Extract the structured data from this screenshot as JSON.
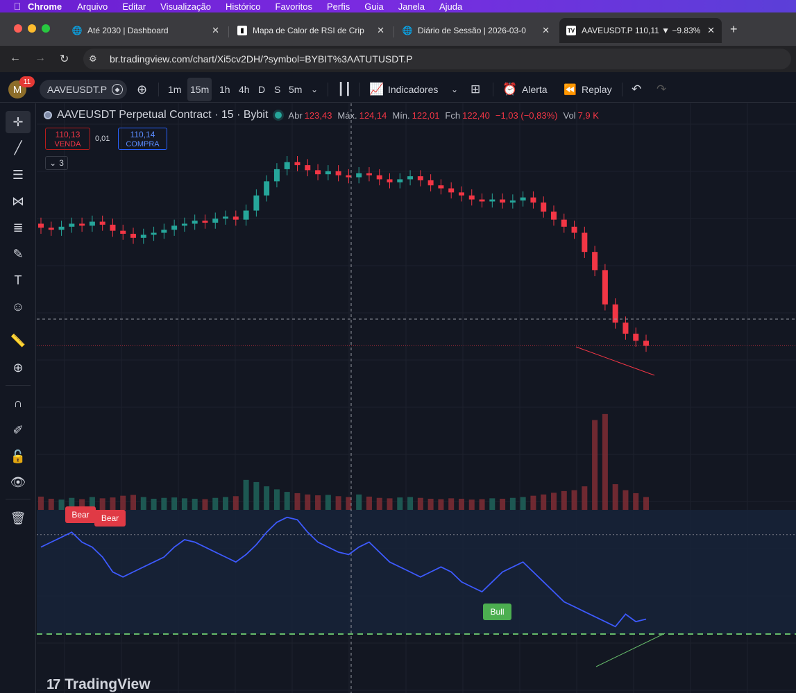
{
  "menubar": {
    "app": "Chrome",
    "items": [
      "Arquivo",
      "Editar",
      "Visualização",
      "Histórico",
      "Favoritos",
      "Perfis",
      "Guia",
      "Janela",
      "Ajuda"
    ]
  },
  "tabs": [
    {
      "title": "Até 2030 | Dashboard",
      "icon": "globe-icon"
    },
    {
      "title": "Mapa de Calor de RSI de Crip",
      "icon": "document-icon"
    },
    {
      "title": "Diário de Sessão | 2026-03-0",
      "icon": "globe-icon"
    },
    {
      "title": "AAVEUSDT.P 110,11 ▼ −9.83%",
      "icon": "tradingview-icon",
      "active": true
    }
  ],
  "address": {
    "url": "br.tradingview.com/chart/Xi5cv2DH/?symbol=BYBIT%3AATUTUSDT.P"
  },
  "toolbar": {
    "avatar_letter": "M",
    "notifications": "11",
    "symbol": "AAVEUSDT.P",
    "intervals": [
      "1m",
      "15m",
      "1h",
      "4h",
      "D",
      "S",
      "5m"
    ],
    "selected_interval": "15m",
    "indicators_label": "Indicadores",
    "alert_label": "Alerta",
    "replay_label": "Replay"
  },
  "legend": {
    "title": "AAVEUSDT Perpetual Contract · 15 · Bybit",
    "open_label": "Abr",
    "open": "123,43",
    "high_label": "Máx.",
    "high": "124,14",
    "low_label": "Mín.",
    "low": "122,01",
    "close_label": "Fch",
    "close": "122,40",
    "change": "−1,03 (−0,83%)",
    "vol_label": "Vol",
    "vol": "7,9 K"
  },
  "trade": {
    "sell_price": "110,13",
    "sell_label": "VENDA",
    "spread": "0,01",
    "buy_price": "110,14",
    "buy_label": "COMPRA"
  },
  "collapsed_count": "3",
  "signals": {
    "bear1": "Bear",
    "bear2": "Bear",
    "bull": "Bull"
  },
  "brand": "TradingView",
  "colors": {
    "up": "#26a69a",
    "down": "#f23645",
    "rsi": "#3d5afe",
    "bull": "#4caf50",
    "bear": "#e03a45"
  },
  "chart_data": {
    "type": "candlestick",
    "series": [
      {
        "name": "AAVEUSDT Perpetual Contract",
        "close": [
          121.8,
          121.6,
          121.9,
          122.2,
          122.0,
          122.4,
          122.1,
          121.5,
          121.2,
          120.8,
          121.1,
          121.3,
          121.6,
          122.0,
          122.2,
          122.5,
          122.3,
          122.7,
          122.9,
          122.6,
          123.5,
          125.0,
          126.4,
          127.6,
          128.3,
          128.0,
          127.5,
          127.1,
          127.4,
          127.0,
          126.8,
          127.2,
          127.0,
          126.6,
          126.3,
          126.6,
          126.9,
          126.5,
          126.0,
          125.7,
          125.3,
          125.0,
          124.6,
          124.4,
          124.6,
          124.3,
          124.5,
          124.8,
          124.3,
          123.4,
          122.6,
          121.9,
          121.3,
          119.4,
          117.6,
          114.2,
          112.4,
          111.3,
          110.6,
          110.1
        ]
      },
      {
        "name": "Volume",
        "values": [
          3.1,
          2.6,
          2.4,
          2.8,
          2.5,
          3.0,
          2.7,
          2.9,
          3.3,
          3.5,
          3.0,
          2.6,
          2.8,
          2.9,
          2.7,
          2.6,
          2.5,
          2.8,
          3.0,
          3.2,
          7.0,
          6.5,
          5.5,
          4.8,
          4.2,
          3.9,
          3.6,
          3.4,
          3.5,
          3.2,
          3.0,
          3.6,
          3.1,
          2.8,
          2.7,
          2.9,
          3.0,
          2.8,
          2.6,
          2.5,
          2.7,
          2.6,
          2.4,
          2.5,
          2.7,
          2.6,
          2.8,
          3.0,
          3.3,
          3.6,
          4.0,
          4.4,
          4.6,
          5.5,
          21.0,
          22.4,
          6.0,
          4.6,
          3.9,
          3.0
        ]
      },
      {
        "name": "RSI",
        "values": [
          55,
          57,
          59,
          61,
          57,
          55,
          51,
          45,
          43,
          45,
          47,
          49,
          51,
          55,
          58,
          57,
          55,
          53,
          51,
          49,
          52,
          56,
          61,
          65,
          67,
          66,
          61,
          57,
          55,
          53,
          52,
          55,
          57,
          53,
          49,
          47,
          45,
          43,
          45,
          47,
          45,
          41,
          39,
          37,
          41,
          45,
          47,
          49,
          45,
          41,
          37,
          33,
          31,
          29,
          27,
          25,
          23,
          28,
          25,
          26
        ]
      }
    ],
    "rsi_levels": [
      70,
      30
    ],
    "axes": "hidden"
  }
}
